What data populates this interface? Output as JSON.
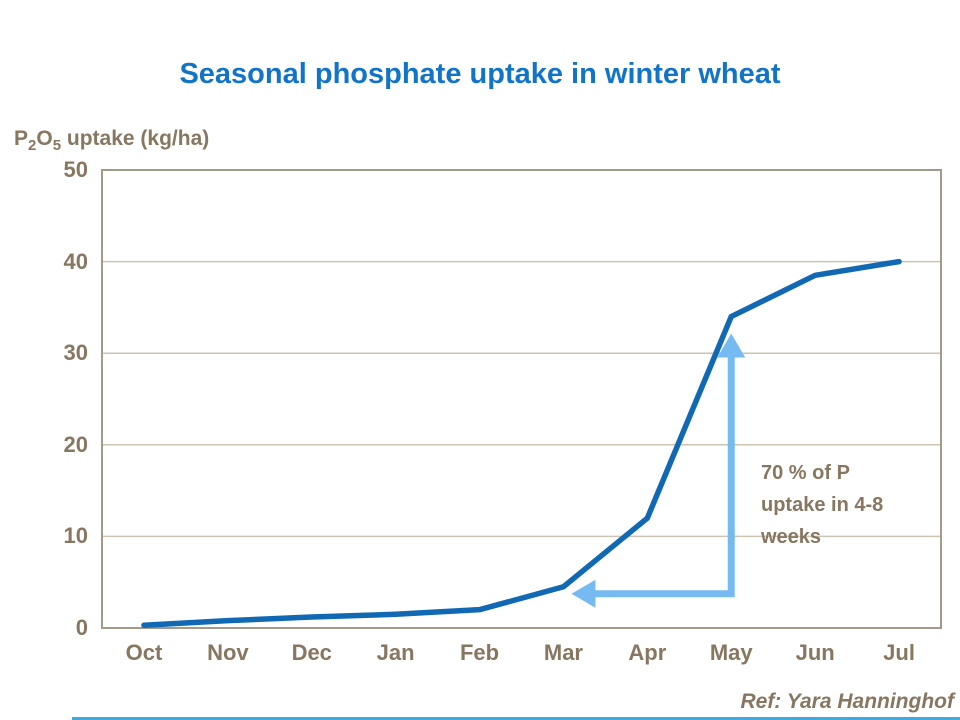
{
  "slide": {
    "title": "Seasonal phosphate uptake in winter wheat",
    "reference": "Ref: Yara Hanninghof"
  },
  "y_axis_title": {
    "p": "P",
    "two": "2",
    "o": "O",
    "five": "5",
    "rest": " uptake (kg/ha)"
  },
  "annotation": {
    "text": "70 % of P uptake in 4-8 weeks"
  },
  "chart_data": {
    "type": "line",
    "title": "Seasonal phosphate uptake in winter wheat",
    "xlabel": "",
    "ylabel": "P2O5 uptake (kg/ha)",
    "categories": [
      "Oct",
      "Nov",
      "Dec",
      "Jan",
      "Feb",
      "Mar",
      "Apr",
      "May",
      "Jun",
      "Jul"
    ],
    "series": [
      {
        "name": "P2O5 uptake",
        "values": [
          0.3,
          0.8,
          1.2,
          1.5,
          2,
          4.5,
          12,
          34,
          38.5,
          40
        ]
      }
    ],
    "ylim": [
      0,
      50
    ],
    "yticks": [
      0,
      10,
      20,
      30,
      40,
      50
    ],
    "grid": "horizontal",
    "legend": "none",
    "annotation_arrow": {
      "shape": "elbow-double-head",
      "from_category": "Mar",
      "to_category": "May",
      "description": "light blue arrow: horizontal head points left at the Mar data point, vertical head points up to the May data point"
    }
  },
  "colors": {
    "title_blue": "#1274C8",
    "line_blue": "#1169B4",
    "arrow_blue": "#76BAF2",
    "text_brown": "#877660",
    "grid_line": "#CCC3B3",
    "plot_border": "#A49A8A",
    "footer_blue": "#3FA9E0",
    "background": "#FFFFFF"
  }
}
